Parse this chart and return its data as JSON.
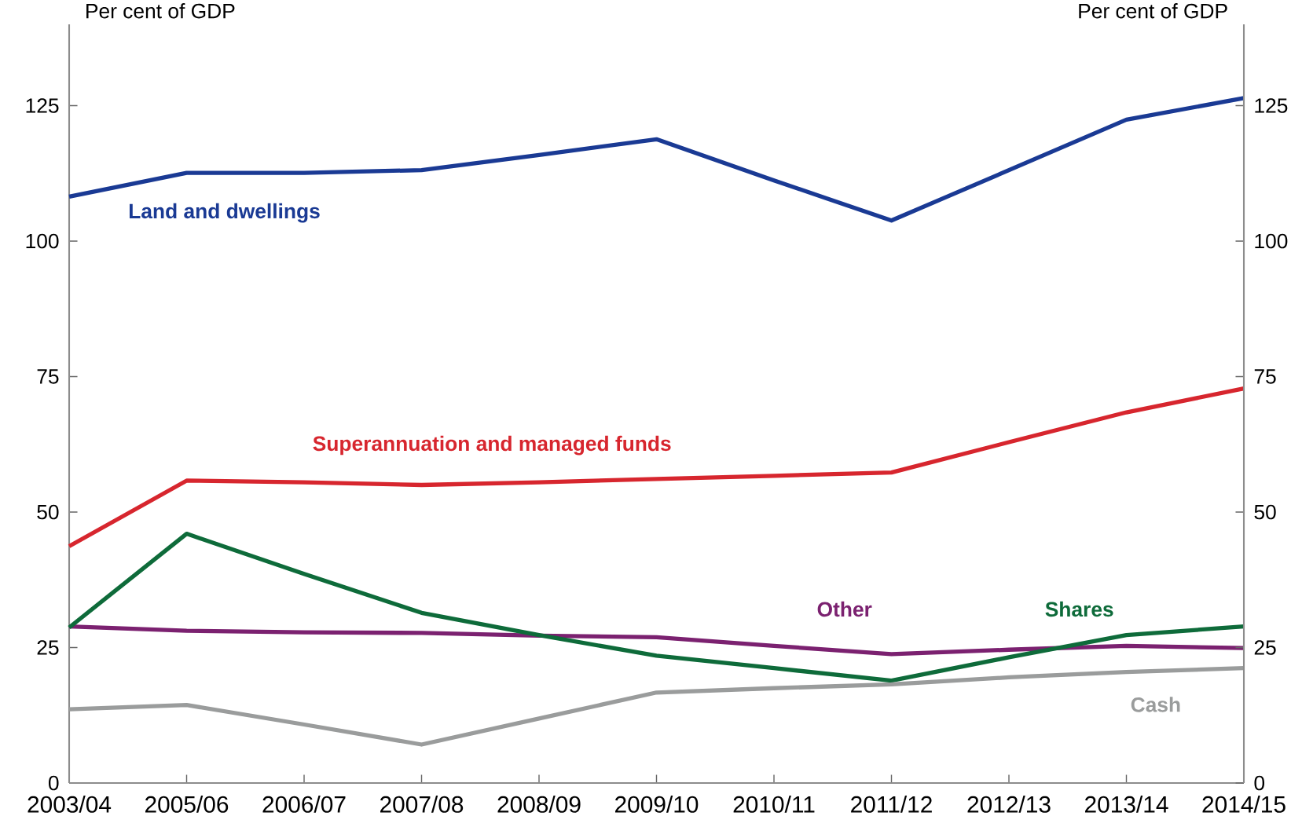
{
  "chart_data": {
    "type": "line",
    "categories": [
      "2003/04",
      "2005/06",
      "2006/07",
      "2007/08",
      "2008/09",
      "2009/10",
      "2010/11",
      "2011/12",
      "2012/13",
      "2013/14",
      "2014/15"
    ],
    "ylabel": "Per cent of GDP",
    "y2label": "Per cent of GDP",
    "ylim": [
      0,
      140
    ],
    "yticks": [
      0,
      25,
      50,
      75,
      100,
      125
    ],
    "y2lim": [
      0,
      140
    ],
    "y2ticks": [
      0,
      25,
      50,
      75,
      100,
      125
    ],
    "grid": false,
    "legend": false,
    "marker": "none",
    "line_style": "solid",
    "series": [
      {
        "name": "Land and dwellings",
        "color": "#1a3a94",
        "values": [
          108.2,
          112.6,
          112.6,
          113.1,
          115.9,
          118.8,
          111.2,
          103.8,
          113.1,
          122.4,
          126.4
        ]
      },
      {
        "name": "Superannuation and managed funds",
        "color": "#d7262e",
        "values": [
          43.7,
          55.8,
          55.5,
          55.0,
          55.5,
          56.1,
          56.7,
          57.3,
          62.9,
          68.4,
          72.8
        ]
      },
      {
        "name": "Other",
        "color": "#7b2170",
        "values": [
          28.9,
          28.1,
          27.8,
          27.7,
          27.2,
          26.9,
          25.3,
          23.8,
          24.6,
          25.3,
          24.9
        ]
      },
      {
        "name": "Shares",
        "color": "#0e6b3a",
        "values": [
          28.7,
          46.0,
          38.6,
          31.4,
          27.3,
          23.5,
          21.2,
          18.9,
          23.2,
          27.3,
          28.9
        ]
      },
      {
        "name": "Cash",
        "color": "#9a9c9c",
        "values": [
          13.6,
          14.4,
          10.8,
          7.1,
          11.9,
          16.7,
          17.5,
          18.2,
          19.5,
          20.5,
          21.2
        ]
      }
    ]
  }
}
